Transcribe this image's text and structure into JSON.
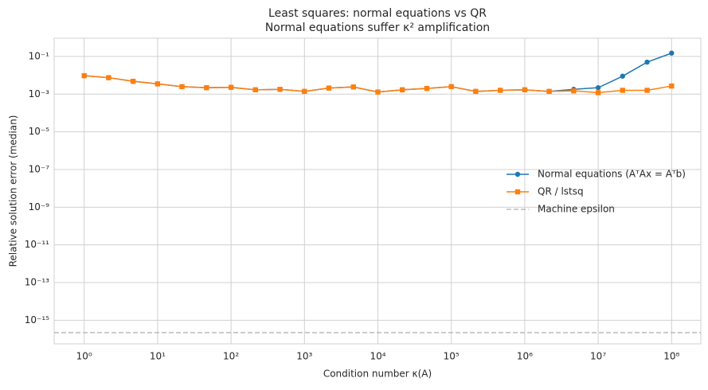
{
  "chart_data": {
    "type": "line",
    "title": "Least squares: normal equations vs QR",
    "subtitle": "Normal equations suffer κ² amplification",
    "x_label": "Condition number κ(A)",
    "y_label": "Relative solution error (median)",
    "xscale": "log",
    "yscale": "log",
    "grid": true,
    "legend": "right",
    "x": [
      1,
      2.15,
      4.64,
      10,
      21.5,
      46.4,
      100,
      215,
      464,
      1000,
      2150,
      4640,
      10000,
      21500,
      46400,
      100000,
      215000,
      464000,
      1000000,
      2150000,
      4640000,
      10000000,
      21500000,
      46400000,
      100000000
    ],
    "series": [
      {
        "name": "Normal equations (AᵀAx = Aᵀb)",
        "color": "#1f77b4",
        "marker": "circle",
        "values": [
          0.0095,
          0.0075,
          0.0048,
          0.0035,
          0.0025,
          0.0022,
          0.0023,
          0.0017,
          0.0018,
          0.0014,
          0.0021,
          0.0024,
          0.0013,
          0.0017,
          0.002,
          0.0025,
          0.0014,
          0.0016,
          0.0017,
          0.0014,
          0.0018,
          0.0022,
          0.009,
          0.05,
          0.15
        ]
      },
      {
        "name": "QR / lstsq",
        "color": "#ff7f0e",
        "marker": "square",
        "values": [
          0.0095,
          0.0075,
          0.0048,
          0.0035,
          0.0025,
          0.0022,
          0.0023,
          0.0017,
          0.0018,
          0.0014,
          0.0021,
          0.0024,
          0.0013,
          0.0017,
          0.002,
          0.0025,
          0.0014,
          0.0016,
          0.0017,
          0.0014,
          0.0015,
          0.0012,
          0.0016,
          0.0016,
          0.0027
        ]
      }
    ],
    "reference_line": {
      "name": "Machine epsilon",
      "color": "#bbbbbb",
      "value": 2.22e-16
    },
    "xlim": [
      0.39,
      250000000
    ],
    "ylim": [
      5.6e-17,
      0.93
    ],
    "xticks": [
      {
        "value": 1,
        "label": "10⁰"
      },
      {
        "value": 10,
        "label": "10¹"
      },
      {
        "value": 100,
        "label": "10²"
      },
      {
        "value": 1000,
        "label": "10³"
      },
      {
        "value": 10000,
        "label": "10⁴"
      },
      {
        "value": 100000,
        "label": "10⁵"
      },
      {
        "value": 1000000,
        "label": "10⁶"
      },
      {
        "value": 10000000,
        "label": "10⁷"
      },
      {
        "value": 100000000,
        "label": "10⁸"
      }
    ],
    "yticks": [
      {
        "value": 1e-15,
        "label": "10⁻¹⁵"
      },
      {
        "value": 1e-13,
        "label": "10⁻¹³"
      },
      {
        "value": 1e-11,
        "label": "10⁻¹¹"
      },
      {
        "value": 1e-09,
        "label": "10⁻⁹"
      },
      {
        "value": 1e-07,
        "label": "10⁻⁷"
      },
      {
        "value": 1e-05,
        "label": "10⁻⁵"
      },
      {
        "value": 0.001,
        "label": "10⁻³"
      },
      {
        "value": 0.1,
        "label": "10⁻¹"
      }
    ]
  }
}
